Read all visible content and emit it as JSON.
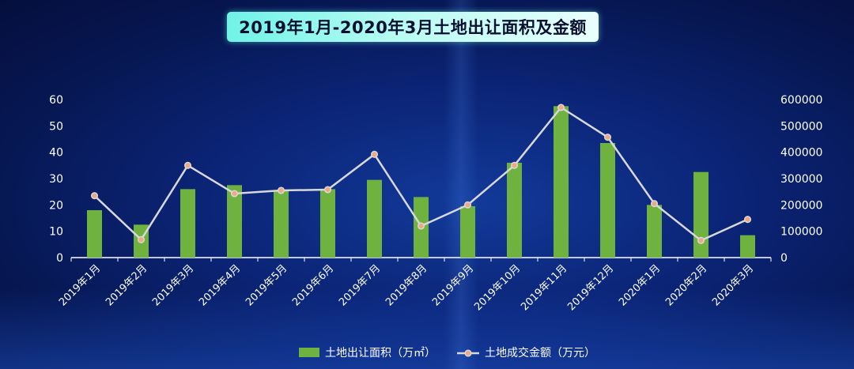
{
  "title": "2019年1月-2020年3月土地出让面积及金额",
  "colors": {
    "bar": "#6fb23f",
    "line": "#d8d8d8",
    "marker_fill": "#f0a783",
    "marker_stroke": "#d8d8d8",
    "title_bg_start": "#6ff3e6",
    "title_bg_end": "#e9fffd"
  },
  "chart_data": {
    "type": "bar",
    "categories": [
      "2019年1月",
      "2019年2月",
      "2019年3月",
      "2019年4月",
      "2019年5月",
      "2019年6月",
      "2019年7月",
      "2019年8月",
      "2019年9月",
      "2019年10月",
      "2019年11月",
      "2019年12月",
      "2020年1月",
      "2020年2月",
      "2020年3月"
    ],
    "series": [
      {
        "name": "土地出让面积（万㎡）",
        "type": "bar",
        "axis": "left",
        "values": [
          18,
          12.5,
          26,
          27.5,
          25.5,
          26,
          29.5,
          23,
          19.5,
          36,
          57.5,
          43.5,
          20,
          32.5,
          8.5
        ]
      },
      {
        "name": "土地成交金额（万元）",
        "type": "line",
        "axis": "right",
        "values": [
          235000,
          68000,
          350000,
          243000,
          255000,
          258000,
          392000,
          120000,
          200000,
          350000,
          570000,
          457000,
          205000,
          65000,
          145000
        ]
      }
    ],
    "y_left": {
      "min": 0,
      "max": 60,
      "ticks": [
        0,
        10,
        20,
        30,
        40,
        50,
        60
      ]
    },
    "y_right": {
      "min": 0,
      "max": 600000,
      "ticks": [
        0,
        100000,
        200000,
        300000,
        400000,
        500000,
        600000
      ]
    },
    "grid": false,
    "legend_position": "bottom-center"
  }
}
